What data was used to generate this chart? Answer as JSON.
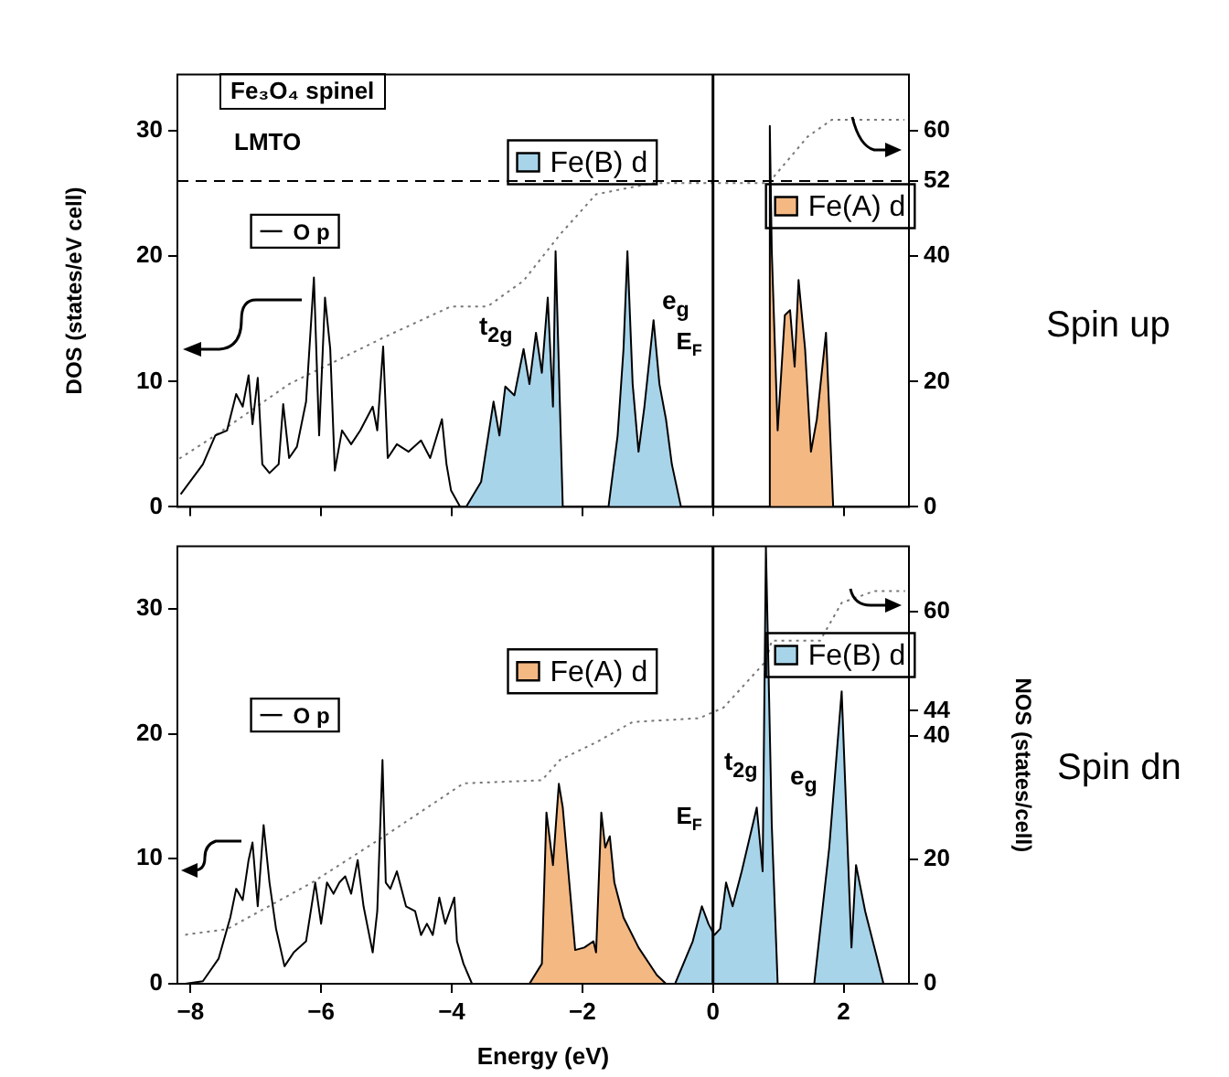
{
  "chart_data": [
    {
      "type": "line",
      "xlim": [
        -8.2,
        3
      ],
      "xticks": [
        -8,
        -6,
        -4,
        -2,
        0,
        2
      ],
      "ylim": [
        0,
        34.5
      ],
      "yticks": [
        0,
        10,
        20,
        30
      ],
      "y2lim": [
        0,
        69
      ],
      "y2ticks": [
        0,
        20,
        40,
        52,
        60
      ],
      "ylabel": "DOS (states/eV cell)",
      "tick_labels": "y",
      "grid": false,
      "legend": "top",
      "marker": "none",
      "series": [
        {
          "name": "O p",
          "type": "line",
          "color": "#000000",
          "x": [
            -8.15,
            -7.81,
            -7.62,
            -7.44,
            -7.3,
            -7.2,
            -7.11,
            -7.05,
            -6.97,
            -6.9,
            -6.79,
            -6.65,
            -6.58,
            -6.49,
            -6.37,
            -6.23,
            -6.11,
            -6.03,
            -5.94,
            -5.86,
            -5.79,
            -5.68,
            -5.54,
            -5.4,
            -5.21,
            -5.14,
            -5.05,
            -4.98,
            -4.84,
            -4.66,
            -4.47,
            -4.33,
            -4.15,
            -4.08,
            -4.01,
            -3.87
          ],
          "values": [
            1,
            3.4,
            5.7,
            6.1,
            9,
            8,
            10.5,
            6.6,
            10.3,
            3.4,
            2.7,
            3.4,
            8.2,
            3.9,
            4.8,
            8.4,
            18.3,
            5.7,
            16.7,
            12.6,
            2.9,
            6.1,
            5,
            6.1,
            8,
            6.1,
            12.8,
            3.9,
            5,
            4.4,
            5.3,
            3.9,
            7,
            3.4,
            1.3,
            0
          ]
        },
        {
          "name": "Fe(B) d",
          "type": "area",
          "color": "#a8d4ea",
          "x": [
            -3.78,
            -3.55,
            -3.36,
            -3.27,
            -3.18,
            -3.04,
            -2.9,
            -2.81,
            -2.71,
            -2.62,
            -2.53,
            -2.45,
            -2.41,
            -2.3,
            -1.6,
            -1.46,
            -1.37,
            -1.31,
            -1.23,
            -1.14,
            -1.05,
            -0.91,
            -0.82,
            -0.72,
            -0.63,
            -0.49
          ],
          "values": [
            0,
            2,
            8.4,
            5.7,
            9.6,
            8.9,
            12.6,
            9.8,
            13.9,
            10.7,
            16.7,
            8,
            20.4,
            0,
            0,
            5.7,
            12.6,
            20.4,
            9.8,
            4.4,
            8,
            14.9,
            9.8,
            7,
            3.4,
            0
          ]
        },
        {
          "name": "Fe(A) d",
          "type": "area",
          "color": "#f4b883",
          "x": [
            0.85,
            0.87,
            0.9,
            0.99,
            1.1,
            1.18,
            1.25,
            1.31,
            1.41,
            1.5,
            1.59,
            1.73,
            1.84
          ],
          "values": [
            0,
            30.4,
            20.4,
            6.1,
            15.3,
            15.7,
            11.2,
            18.1,
            12.6,
            4.4,
            7,
            13.9,
            0
          ]
        },
        {
          "type": "line",
          "axis": "y2",
          "color": "#777777",
          "line_style": "dotted",
          "x": [
            -8.17,
            -7.62,
            -6.49,
            -5.05,
            -4.01,
            -3.45,
            -2.9,
            -2.34,
            -1.79,
            -0.91,
            0.85,
            1.45,
            1.82,
            2.93
          ],
          "values": [
            7.7,
            11.4,
            19.6,
            27,
            32,
            32,
            36.1,
            43.5,
            49.9,
            51.7,
            51.7,
            59.1,
            61.8,
            61.8
          ]
        }
      ],
      "ref_lines": [
        {
          "axis": "x",
          "value": 0,
          "label": "E$_{F}$"
        },
        {
          "axis": "y2",
          "value": 52,
          "line_style": "dashed"
        }
      ],
      "annotations": [
        "Fe₃O₄ spinel",
        "LMTO",
        "Spin up",
        "t$_{2g}$",
        "e$_{g}$"
      ]
    },
    {
      "type": "line",
      "xlim": [
        -8.2,
        3
      ],
      "xticks": [
        -8,
        -6,
        -4,
        -2,
        0,
        2
      ],
      "ylim": [
        0,
        35
      ],
      "yticks": [
        0,
        10,
        20,
        30
      ],
      "y2lim": [
        0,
        70.5
      ],
      "y2ticks": [
        0,
        20,
        40,
        44,
        60
      ],
      "xlabel": "Energy (eV)",
      "y2label": "NOS (states/cell)",
      "grid": false,
      "legend": "top",
      "marker": "none",
      "series": [
        {
          "name": "O p",
          "type": "line",
          "color": "#000000",
          "x": [
            -8.08,
            -7.81,
            -7.57,
            -7.39,
            -7.3,
            -7.2,
            -7.11,
            -7.05,
            -6.97,
            -6.88,
            -6.79,
            -6.69,
            -6.56,
            -6.42,
            -6.23,
            -6.09,
            -6,
            -5.91,
            -5.81,
            -5.72,
            -5.63,
            -5.54,
            -5.44,
            -5.35,
            -5.21,
            -5.14,
            -5.06,
            -5.01,
            -4.94,
            -4.84,
            -4.7,
            -4.56,
            -4.47,
            -4.38,
            -4.29,
            -4.19,
            -4.1,
            -3.96,
            -3.92,
            -3.82,
            -3.69
          ],
          "values": [
            0,
            0.2,
            2,
            5.3,
            7.6,
            6.7,
            9.9,
            11.3,
            6.2,
            12.7,
            8.1,
            4.4,
            1.4,
            2.5,
            3.4,
            8.1,
            4.8,
            8.1,
            7.2,
            8.1,
            8.6,
            7.2,
            9.9,
            6.2,
            2.5,
            5.8,
            17.9,
            8.1,
            7.6,
            9,
            6.2,
            5.8,
            3.9,
            4.8,
            3.9,
            6.9,
            4.8,
            6.9,
            3.4,
            1.6,
            0
          ]
        },
        {
          "name": "Fe(A) d",
          "type": "area",
          "color": "#f4b883",
          "x": [
            -2.81,
            -2.62,
            -2.55,
            -2.45,
            -2.36,
            -2.3,
            -2.2,
            -2.11,
            -1.97,
            -1.83,
            -1.79,
            -1.71,
            -1.65,
            -1.58,
            -1.51,
            -1.37,
            -1.14,
            -0.86,
            -0.72
          ],
          "values": [
            0,
            1.6,
            13.7,
            9.5,
            16,
            14.1,
            8.1,
            2.7,
            2.9,
            3.4,
            2.5,
            13.7,
            10.9,
            11.8,
            8.1,
            5.3,
            2.9,
            0.7,
            0
          ]
        },
        {
          "name": "Fe(B) d",
          "type": "area",
          "color": "#a8d4ea",
          "x": [
            -0.58,
            -0.31,
            -0.17,
            -0.07,
            0.02,
            0.11,
            0.2,
            0.3,
            0.44,
            0.67,
            0.76,
            0.81,
            0.9,
            0.99,
            1.55,
            1.78,
            1.97,
            2.12,
            2.19,
            2.33,
            2.49,
            2.61
          ],
          "values": [
            0,
            3.4,
            6.2,
            4.8,
            3.9,
            4.4,
            8.1,
            6.2,
            9,
            14.1,
            9,
            35,
            12.7,
            0,
            0,
            10.9,
            23.4,
            2.9,
            9.5,
            5.8,
            2.5,
            0
          ]
        },
        {
          "type": "line",
          "axis": "y2",
          "color": "#777777",
          "line_style": "dotted",
          "x": [
            -8.08,
            -7.44,
            -6.14,
            -5.03,
            -3.82,
            -2.62,
            -2.34,
            -1.79,
            -1.23,
            -0.21,
            0.16,
            0.81,
            0.9,
            1.64,
            1.97,
            2.47,
            2.94
          ],
          "values": [
            7.9,
            8.8,
            16.3,
            23.8,
            32.3,
            32.8,
            36.1,
            38.9,
            42.2,
            42.8,
            44.5,
            52,
            55.3,
            55.3,
            61.4,
            63.3,
            63.3
          ]
        }
      ],
      "ref_lines": [
        {
          "axis": "x",
          "value": 0,
          "label": "E$_{F}$"
        }
      ],
      "annotations": [
        "Spin dn",
        "t$_{2g}$",
        "e$_{g}$"
      ]
    }
  ]
}
